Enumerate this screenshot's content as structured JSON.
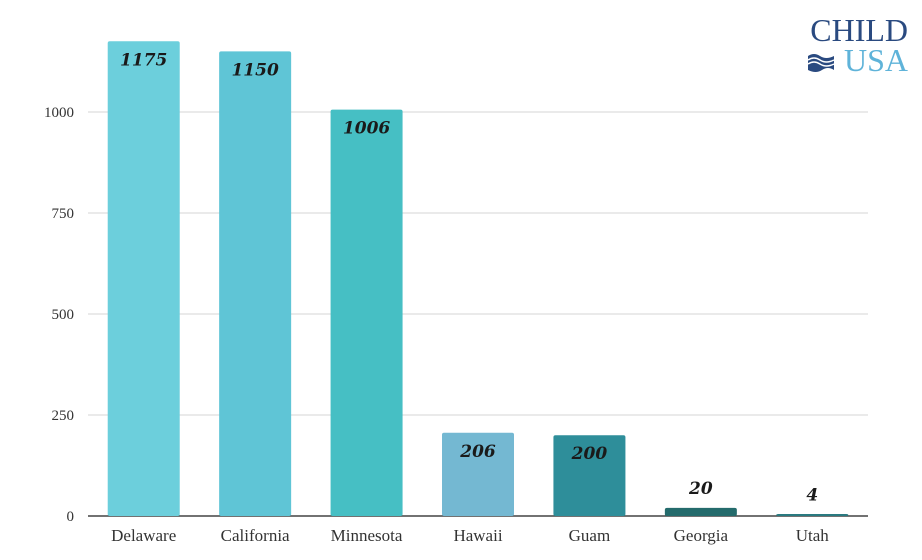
{
  "logo": {
    "line1": "CHILD",
    "line2": "USA"
  },
  "chart_data": {
    "type": "bar",
    "categories": [
      "Delaware",
      "California",
      "Minnesota",
      "Hawaii",
      "Guam",
      "Georgia",
      "Utah"
    ],
    "values": [
      1175,
      1150,
      1006,
      206,
      200,
      20,
      4
    ],
    "value_labels": [
      "1175",
      "1150",
      "1006",
      "206",
      "200",
      "20",
      "4"
    ],
    "bar_colors": [
      "#6ccfdc",
      "#5fc5d6",
      "#46bfc4",
      "#74b8d2",
      "#2e8e9a",
      "#246b6c",
      "#2a7a80"
    ],
    "yticks": [
      0,
      250,
      500,
      750,
      1000
    ],
    "ytick_labels": [
      "0",
      "250",
      "500",
      "750",
      "1000"
    ],
    "ylim": [
      0,
      1200
    ],
    "grid": true,
    "title": "",
    "xlabel": "",
    "ylabel": ""
  }
}
